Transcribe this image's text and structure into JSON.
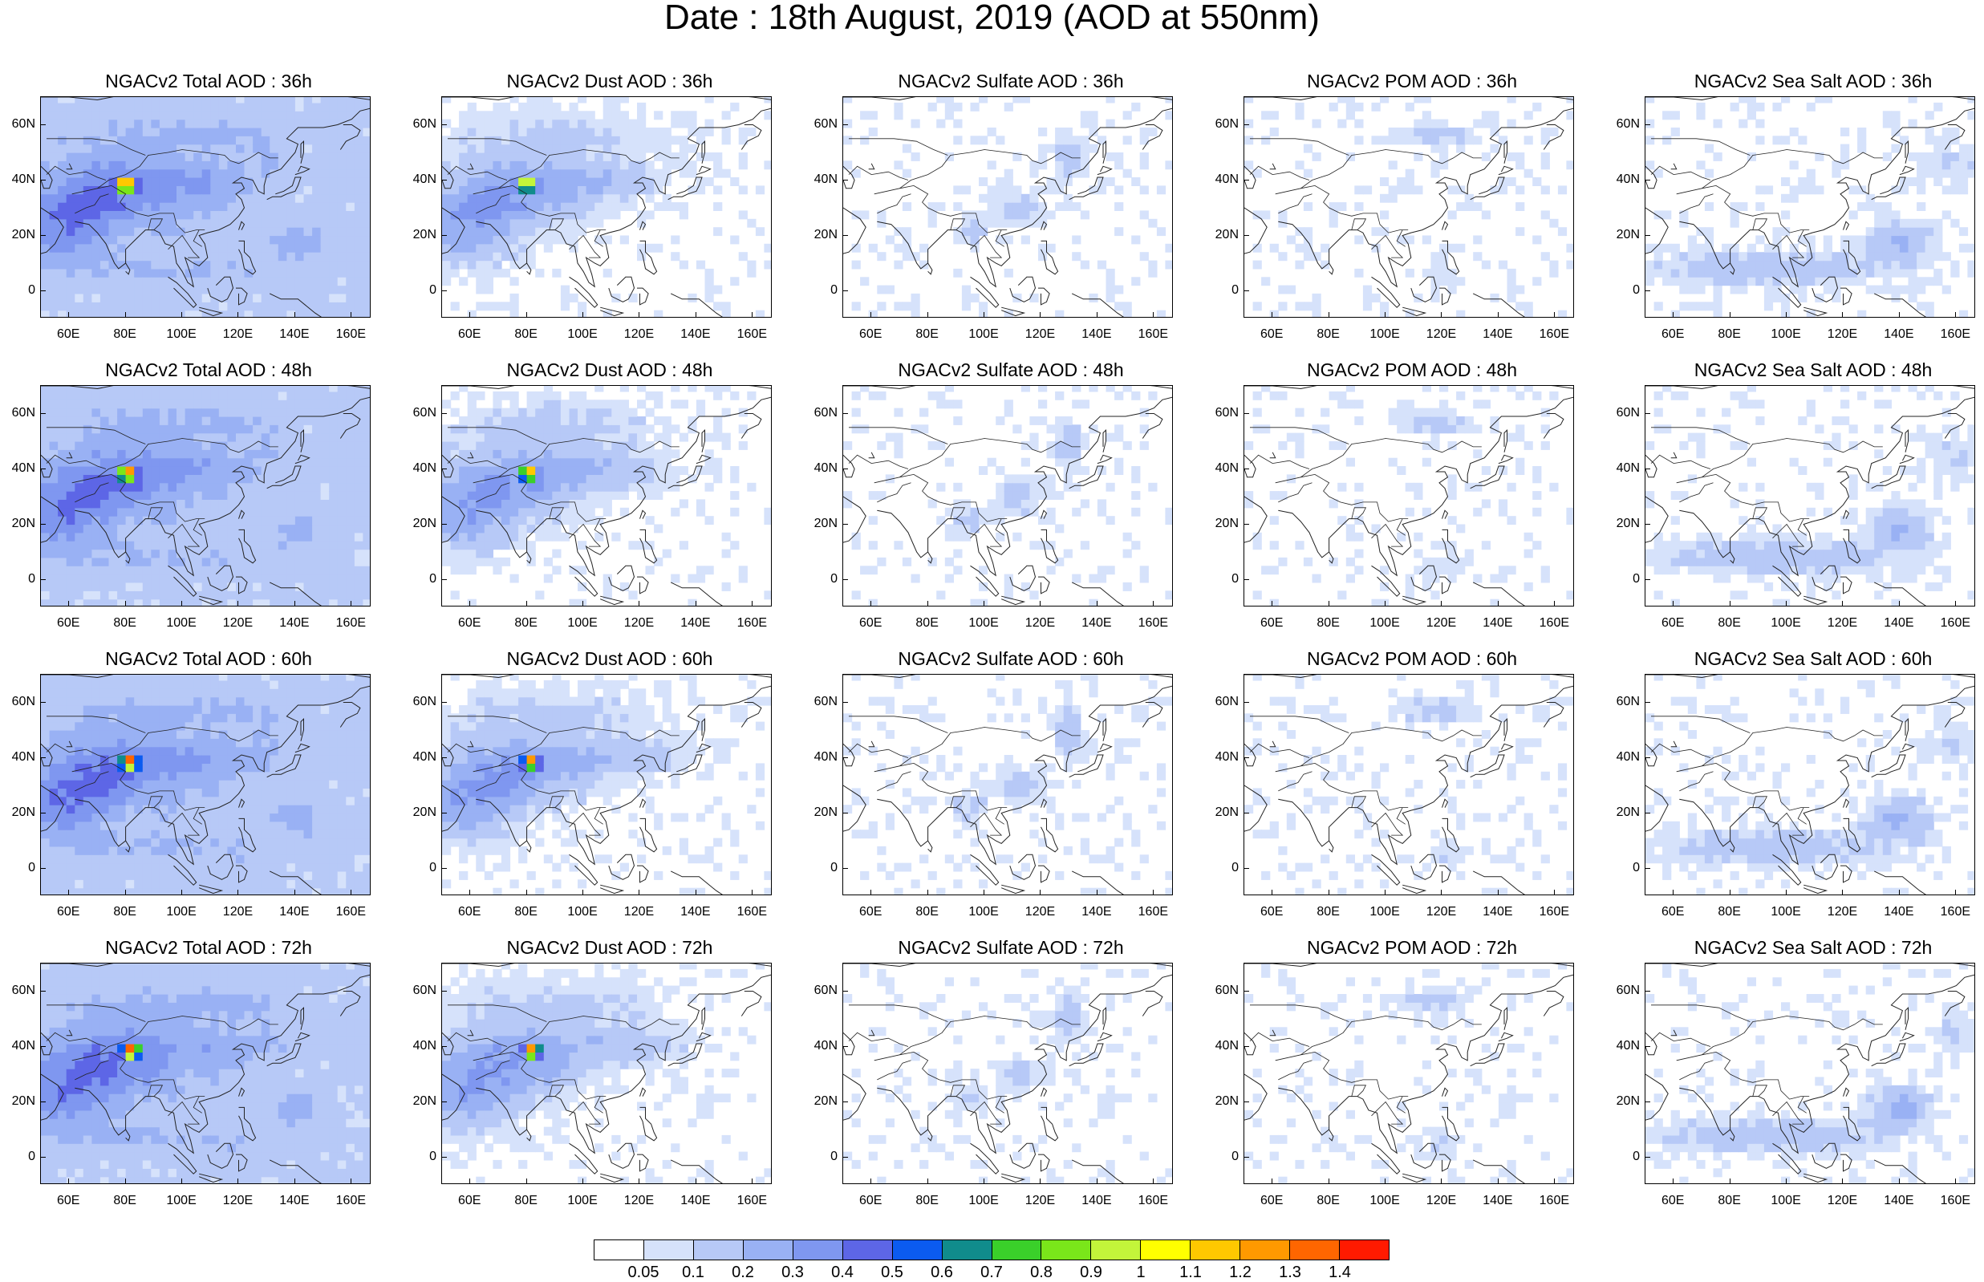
{
  "title": "Date : 18th August, 2019 (AOD at 550nm)",
  "lat_ticks": [
    "60N",
    "40N",
    "20N",
    "0"
  ],
  "lat_values": [
    60,
    40,
    20,
    0
  ],
  "lon_ticks": [
    "60E",
    "80E",
    "100E",
    "120E",
    "140E",
    "160E"
  ],
  "lon_values": [
    60,
    80,
    100,
    120,
    140,
    160
  ],
  "map_extent": {
    "lon_min": 50,
    "lon_max": 167,
    "lat_min": -10,
    "lat_max": 70
  },
  "panels": [
    [
      {
        "title": "NGACv2 Total AOD : 36h",
        "field": "total",
        "hour": 36
      },
      {
        "title": "NGACv2 Dust AOD : 36h",
        "field": "dust",
        "hour": 36
      },
      {
        "title": "NGACv2 Sulfate AOD : 36h",
        "field": "sulfate",
        "hour": 36
      },
      {
        "title": "NGACv2 POM AOD : 36h",
        "field": "pom",
        "hour": 36
      },
      {
        "title": "NGACv2 Sea Salt AOD : 36h",
        "field": "seasalt",
        "hour": 36
      }
    ],
    [
      {
        "title": "NGACv2 Total AOD : 48h",
        "field": "total",
        "hour": 48
      },
      {
        "title": "NGACv2 Dust AOD : 48h",
        "field": "dust",
        "hour": 48
      },
      {
        "title": "NGACv2 Sulfate AOD : 48h",
        "field": "sulfate",
        "hour": 48
      },
      {
        "title": "NGACv2 POM AOD : 48h",
        "field": "pom",
        "hour": 48
      },
      {
        "title": "NGACv2 Sea Salt AOD : 48h",
        "field": "seasalt",
        "hour": 48
      }
    ],
    [
      {
        "title": "NGACv2 Total AOD : 60h",
        "field": "total",
        "hour": 60
      },
      {
        "title": "NGACv2 Dust AOD : 60h",
        "field": "dust",
        "hour": 60
      },
      {
        "title": "NGACv2 Sulfate AOD : 60h",
        "field": "sulfate",
        "hour": 60
      },
      {
        "title": "NGACv2 POM AOD : 60h",
        "field": "pom",
        "hour": 60
      },
      {
        "title": "NGACv2 Sea Salt AOD : 60h",
        "field": "seasalt",
        "hour": 60
      }
    ],
    [
      {
        "title": "NGACv2 Total AOD : 72h",
        "field": "total",
        "hour": 72
      },
      {
        "title": "NGACv2 Dust AOD : 72h",
        "field": "dust",
        "hour": 72
      },
      {
        "title": "NGACv2 Sulfate AOD : 72h",
        "field": "sulfate",
        "hour": 72
      },
      {
        "title": "NGACv2 POM AOD : 72h",
        "field": "pom",
        "hour": 72
      },
      {
        "title": "NGACv2 Sea Salt  AOD : 72h",
        "field": "seasalt",
        "hour": 72
      }
    ]
  ],
  "colorbar": {
    "labels": [
      "0.05",
      "0.1",
      "0.2",
      "0.3",
      "0.4",
      "0.5",
      "0.6",
      "0.7",
      "0.8",
      "0.9",
      "1",
      "1.1",
      "1.2",
      "1.3",
      "1.4"
    ],
    "colors": [
      "#ffffff",
      "#d6e2fb",
      "#b7c9f7",
      "#99b1f4",
      "#7f97f0",
      "#5d66e6",
      "#0b5bf0",
      "#108c8c",
      "#3ad02a",
      "#7ae61a",
      "#c3f53a",
      "#ffff00",
      "#ffc800",
      "#ff9900",
      "#ff6600",
      "#ff1a00"
    ]
  }
}
